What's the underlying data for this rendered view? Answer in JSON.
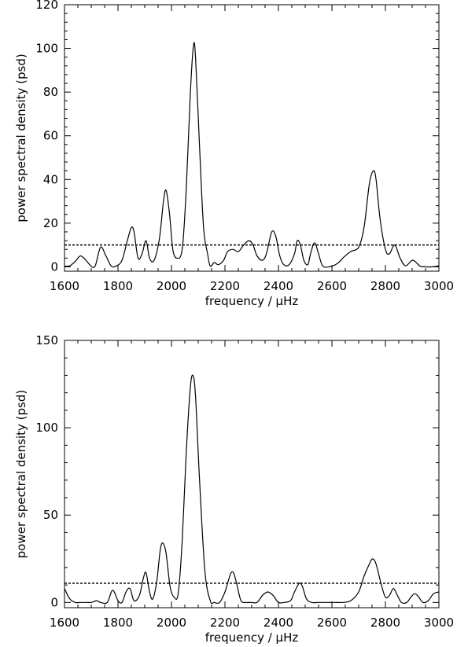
{
  "chart_data": [
    {
      "type": "line",
      "xlabel": "frequency / μHz",
      "ylabel": "power spectral density (psd)",
      "xlim": [
        1600,
        3000
      ],
      "ylim": [
        -2,
        120
      ],
      "xticks": [
        1600,
        1800,
        2000,
        2200,
        2400,
        2600,
        2800,
        3000
      ],
      "yticks": [
        0,
        20,
        40,
        60,
        80,
        100,
        120
      ],
      "threshold": 10,
      "series": [
        {
          "points": [
            [
              1600,
              0.3
            ],
            [
              1620,
              0.5
            ],
            [
              1640,
              2.5
            ],
            [
              1660,
              5
            ],
            [
              1680,
              3
            ],
            [
              1700,
              0.3
            ],
            [
              1715,
              0.5
            ],
            [
              1735,
              9
            ],
            [
              1755,
              5
            ],
            [
              1775,
              0.3
            ],
            [
              1795,
              0.5
            ],
            [
              1815,
              3
            ],
            [
              1835,
              12
            ],
            [
              1850,
              18
            ],
            [
              1860,
              16
            ],
            [
              1875,
              4
            ],
            [
              1890,
              6
            ],
            [
              1905,
              12
            ],
            [
              1918,
              4
            ],
            [
              1935,
              3
            ],
            [
              1955,
              13
            ],
            [
              1970,
              30
            ],
            [
              1980,
              35
            ],
            [
              1993,
              24
            ],
            [
              2005,
              8
            ],
            [
              2020,
              4
            ],
            [
              2040,
              8
            ],
            [
              2055,
              35
            ],
            [
              2070,
              78
            ],
            [
              2082,
              101
            ],
            [
              2090,
              96
            ],
            [
              2105,
              55
            ],
            [
              2120,
              18
            ],
            [
              2135,
              6
            ],
            [
              2145,
              0.3
            ],
            [
              2160,
              2
            ],
            [
              2175,
              1
            ],
            [
              2195,
              3
            ],
            [
              2210,
              7
            ],
            [
              2230,
              8
            ],
            [
              2250,
              7
            ],
            [
              2270,
              10
            ],
            [
              2290,
              12
            ],
            [
              2305,
              10
            ],
            [
              2320,
              5
            ],
            [
              2340,
              3
            ],
            [
              2355,
              6
            ],
            [
              2375,
              16
            ],
            [
              2390,
              14
            ],
            [
              2405,
              5
            ],
            [
              2420,
              1
            ],
            [
              2440,
              1
            ],
            [
              2460,
              6
            ],
            [
              2470,
              12
            ],
            [
              2482,
              10
            ],
            [
              2495,
              3
            ],
            [
              2510,
              1
            ],
            [
              2520,
              6
            ],
            [
              2535,
              11
            ],
            [
              2550,
              6
            ],
            [
              2565,
              0.5
            ],
            [
              2590,
              0
            ],
            [
              2620,
              1.5
            ],
            [
              2645,
              4.5
            ],
            [
              2670,
              7
            ],
            [
              2700,
              9
            ],
            [
              2720,
              18
            ],
            [
              2740,
              38
            ],
            [
              2755,
              44
            ],
            [
              2765,
              40
            ],
            [
              2780,
              22
            ],
            [
              2800,
              8
            ],
            [
              2815,
              6
            ],
            [
              2835,
              10
            ],
            [
              2855,
              4
            ],
            [
              2875,
              0.5
            ],
            [
              2900,
              3
            ],
            [
              2915,
              2
            ],
            [
              2930,
              0.3
            ],
            [
              2950,
              0
            ],
            [
              2975,
              0
            ],
            [
              3000,
              0.5
            ]
          ]
        }
      ]
    },
    {
      "type": "line",
      "xlabel": "frequency / μHz",
      "ylabel": "power spectral density (psd)",
      "xlim": [
        1600,
        3000
      ],
      "ylim": [
        -3,
        150
      ],
      "xticks": [
        1600,
        1800,
        2000,
        2200,
        2400,
        2600,
        2800,
        3000
      ],
      "yticks": [
        0,
        50,
        100,
        150
      ],
      "threshold": 11,
      "series": [
        {
          "points": [
            [
              1600,
              8
            ],
            [
              1620,
              2
            ],
            [
              1640,
              0
            ],
            [
              1660,
              0
            ],
            [
              1680,
              0
            ],
            [
              1700,
              0
            ],
            [
              1720,
              1
            ],
            [
              1735,
              0
            ],
            [
              1760,
              0
            ],
            [
              1780,
              7
            ],
            [
              1800,
              1
            ],
            [
              1815,
              0
            ],
            [
              1830,
              6
            ],
            [
              1845,
              8
            ],
            [
              1860,
              1
            ],
            [
              1880,
              4
            ],
            [
              1895,
              14
            ],
            [
              1905,
              17
            ],
            [
              1918,
              6
            ],
            [
              1930,
              2
            ],
            [
              1945,
              12
            ],
            [
              1958,
              30
            ],
            [
              1968,
              34
            ],
            [
              1980,
              28
            ],
            [
              1995,
              9
            ],
            [
              2010,
              3
            ],
            [
              2025,
              5
            ],
            [
              2040,
              35
            ],
            [
              2055,
              85
            ],
            [
              2070,
              122
            ],
            [
              2080,
              130
            ],
            [
              2090,
              118
            ],
            [
              2105,
              70
            ],
            [
              2125,
              18
            ],
            [
              2145,
              1
            ],
            [
              2160,
              0
            ],
            [
              2180,
              0
            ],
            [
              2200,
              6
            ],
            [
              2220,
              16
            ],
            [
              2232,
              17
            ],
            [
              2245,
              10
            ],
            [
              2260,
              1
            ],
            [
              2280,
              0
            ],
            [
              2300,
              0
            ],
            [
              2320,
              0
            ],
            [
              2340,
              4
            ],
            [
              2360,
              6
            ],
            [
              2380,
              4
            ],
            [
              2400,
              0
            ],
            [
              2420,
              0
            ],
            [
              2445,
              1
            ],
            [
              2460,
              6
            ],
            [
              2478,
              11
            ],
            [
              2490,
              9
            ],
            [
              2505,
              2
            ],
            [
              2525,
              0
            ],
            [
              2550,
              0
            ],
            [
              2580,
              0
            ],
            [
              2610,
              0
            ],
            [
              2640,
              0
            ],
            [
              2670,
              1
            ],
            [
              2700,
              6
            ],
            [
              2720,
              15
            ],
            [
              2740,
              22
            ],
            [
              2752,
              25
            ],
            [
              2765,
              22
            ],
            [
              2785,
              10
            ],
            [
              2800,
              3
            ],
            [
              2815,
              4
            ],
            [
              2830,
              8
            ],
            [
              2845,
              4
            ],
            [
              2860,
              0
            ],
            [
              2880,
              0
            ],
            [
              2895,
              3
            ],
            [
              2910,
              5
            ],
            [
              2925,
              3
            ],
            [
              2940,
              0
            ],
            [
              2960,
              1
            ],
            [
              2980,
              5
            ],
            [
              3000,
              6
            ]
          ]
        }
      ]
    }
  ]
}
